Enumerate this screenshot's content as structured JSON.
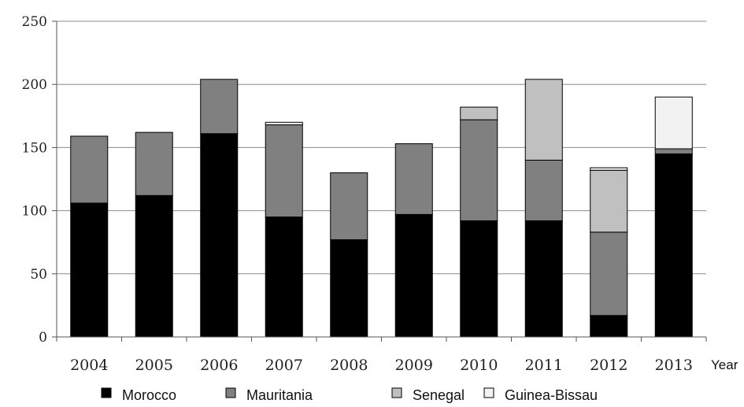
{
  "chart_data": {
    "type": "bar",
    "stacked": true,
    "title": "",
    "xlabel": "Year",
    "ylabel": "",
    "ylim": [
      0,
      250
    ],
    "yticks": [
      0,
      50,
      100,
      150,
      200,
      250
    ],
    "grid": true,
    "legend_position": "bottom",
    "categories": [
      "2004",
      "2005",
      "2006",
      "2007",
      "2008",
      "2009",
      "2010",
      "2011",
      "2012",
      "2013"
    ],
    "series": [
      {
        "name": "Morocco",
        "color": "#000000",
        "values": [
          106,
          112,
          161,
          95,
          77,
          97,
          92,
          92,
          17,
          145
        ]
      },
      {
        "name": "Mauritania",
        "color": "#808080",
        "values": [
          53,
          50,
          43,
          73,
          53,
          56,
          80,
          48,
          66,
          4
        ]
      },
      {
        "name": "Senegal",
        "color": "#c0c0c0",
        "values": [
          0,
          0,
          0,
          0,
          0,
          0,
          10,
          64,
          49,
          0
        ]
      },
      {
        "name": "Guinea-Bissau",
        "color": "#f2f2f2",
        "values": [
          0,
          0,
          0,
          2,
          0,
          0,
          0,
          0,
          2,
          41
        ]
      }
    ]
  }
}
